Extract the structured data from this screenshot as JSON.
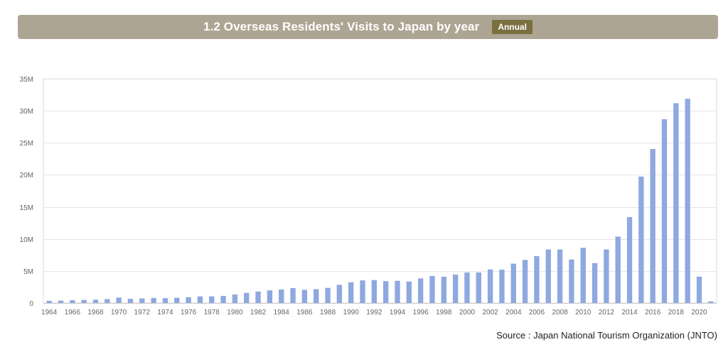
{
  "header": {
    "title": "1.2 Overseas Residents' Visits to Japan by year",
    "badge": "Annual"
  },
  "source": "Source : Japan National Tourism Organization (JNTO)",
  "colors": {
    "header_bg": "#ada593",
    "badge_bg": "#7b6f40",
    "bar": "#8ea8e0",
    "grid": "#e6e6e6"
  },
  "chart_data": {
    "type": "bar",
    "title": "1.2 Overseas Residents' Visits to Japan by year",
    "xlabel": "",
    "ylabel": "",
    "ylim": [
      0,
      35000000
    ],
    "yticks": [
      0,
      5000000,
      10000000,
      15000000,
      20000000,
      25000000,
      30000000,
      35000000
    ],
    "ytick_labels": [
      "0",
      "5M",
      "10M",
      "15M",
      "20M",
      "25M",
      "30M",
      "35M"
    ],
    "grid": true,
    "legend": "none",
    "categories": [
      "1964",
      "1965",
      "1966",
      "1967",
      "1968",
      "1969",
      "1970",
      "1971",
      "1972",
      "1973",
      "1974",
      "1975",
      "1976",
      "1977",
      "1978",
      "1979",
      "1980",
      "1981",
      "1982",
      "1983",
      "1984",
      "1985",
      "1986",
      "1987",
      "1988",
      "1989",
      "1990",
      "1991",
      "1992",
      "1993",
      "1994",
      "1995",
      "1996",
      "1997",
      "1998",
      "1999",
      "2000",
      "2001",
      "2002",
      "2003",
      "2004",
      "2005",
      "2006",
      "2007",
      "2008",
      "2009",
      "2010",
      "2011",
      "2012",
      "2013",
      "2014",
      "2015",
      "2016",
      "2017",
      "2018",
      "2019",
      "2020",
      "2021"
    ],
    "xtick_labels": [
      "1964",
      "1966",
      "1968",
      "1970",
      "1972",
      "1974",
      "1976",
      "1978",
      "1980",
      "1982",
      "1984",
      "1986",
      "1988",
      "1990",
      "1992",
      "1994",
      "1996",
      "1998",
      "2000",
      "2002",
      "2004",
      "2006",
      "2008",
      "2010",
      "2012",
      "2014",
      "2016",
      "2018",
      "2020"
    ],
    "values": [
      350000,
      370000,
      430000,
      480000,
      520000,
      610000,
      850000,
      660000,
      720000,
      790000,
      760000,
      810000,
      910000,
      1030000,
      1040000,
      1110000,
      1320000,
      1580000,
      1790000,
      1970000,
      2110000,
      2330000,
      2060000,
      2160000,
      2360000,
      2840000,
      3240000,
      3530000,
      3580000,
      3410000,
      3470000,
      3350000,
      3840000,
      4220000,
      4110000,
      4440000,
      4760000,
      4770000,
      5240000,
      5210000,
      6140000,
      6730000,
      7330000,
      8350000,
      8350000,
      6790000,
      8610000,
      6220000,
      8360000,
      10360000,
      13410000,
      19740000,
      24040000,
      28690000,
      31190000,
      31880000,
      4120000,
      250000
    ]
  }
}
